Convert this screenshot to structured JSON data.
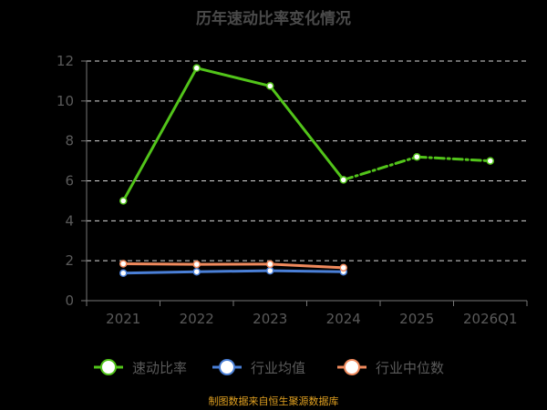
{
  "title": "历年速动比率变化情况",
  "source": "制图数据来自恒生聚源数据库",
  "chart_data": {
    "type": "line",
    "categories": [
      "2021",
      "2022",
      "2023",
      "2024",
      "2025",
      "2026Q1"
    ],
    "ylim": [
      0,
      12
    ],
    "yticks": [
      0,
      2,
      4,
      6,
      8,
      10,
      12
    ],
    "grid": true,
    "legend_position": "bottom",
    "series": [
      {
        "name": "速动比率",
        "color": "#52c41a",
        "values": [
          5.0,
          11.65,
          10.75,
          6.05,
          7.2,
          7.0
        ],
        "dashed_from": 4
      },
      {
        "name": "行业均值",
        "color": "#4a7fd6",
        "values": [
          1.38,
          1.45,
          1.5,
          1.45,
          null,
          null
        ]
      },
      {
        "name": "行业中位数",
        "color": "#f08a5d",
        "values": [
          1.85,
          1.82,
          1.83,
          1.65,
          null,
          null
        ]
      }
    ]
  }
}
